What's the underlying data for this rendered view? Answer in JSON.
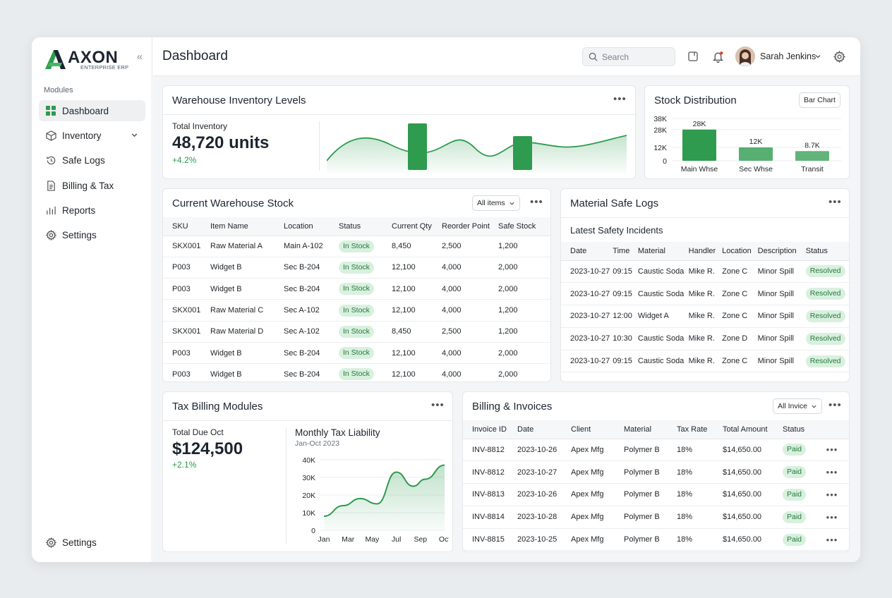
{
  "brand": {
    "name": "AXON",
    "subtitle": "ENTERPRISE ERP"
  },
  "sidebar": {
    "section_label": "Modules",
    "items": [
      {
        "label": "Dashboard",
        "icon": "grid-icon",
        "active": true
      },
      {
        "label": "Inventory",
        "icon": "box-icon"
      },
      {
        "label": "Safe Logs",
        "icon": "history-icon"
      },
      {
        "label": "Billing & Tax",
        "icon": "document-icon"
      },
      {
        "label": "Reports",
        "icon": "bar-chart-icon"
      },
      {
        "label": "Settings",
        "icon": "gear-icon"
      }
    ],
    "footer_label": "Settings"
  },
  "header": {
    "title": "Dashboard",
    "search_placeholder": "Search",
    "user_name": "Sarah Jenkins"
  },
  "warehouse": {
    "title": "Warehouse Inventory Levels",
    "total_label": "Total Inventory",
    "total_value": "48,720 units",
    "delta": "+4.2%"
  },
  "stock_dist": {
    "title": "Stock Distribution",
    "button": "Bar Chart",
    "chart_data": {
      "type": "bar",
      "categories": [
        "Main Whse",
        "Sec Whse",
        "Transit"
      ],
      "values": [
        28,
        12,
        8.7
      ],
      "data_labels": [
        "28K",
        "12K",
        "8.7K"
      ],
      "yticks": [
        "38K",
        "28K",
        "12K",
        "0"
      ],
      "color": "#2e9b4f"
    }
  },
  "stock_table": {
    "title": "Current Warehouse Stock",
    "filter": "All items",
    "columns": [
      "SKU",
      "Item Name",
      "Location",
      "Status",
      "Current Qty",
      "Reorder Point",
      "Safe Stock"
    ],
    "rows": [
      [
        "SKX001",
        "Raw Material A",
        "Main A-102",
        "In Stock",
        "8,450",
        "2,500",
        "1,200"
      ],
      [
        "P003",
        "Widget B",
        "Sec B-204",
        "In Stock",
        "12,100",
        "4,000",
        "2,000"
      ],
      [
        "P003",
        "Widget B",
        "Sec B-204",
        "In Stock",
        "12,100",
        "4,000",
        "2,000"
      ],
      [
        "SKX001",
        "Raw Material C",
        "Sec A-102",
        "In Stock",
        "12,100",
        "4,000",
        "1,200"
      ],
      [
        "SKX001",
        "Raw Material D",
        "Sec A-102",
        "In Stock",
        "8,450",
        "2,500",
        "1,200"
      ],
      [
        "P003",
        "Widget B",
        "Sec B-204",
        "In Stock",
        "12,100",
        "4,000",
        "2,000"
      ],
      [
        "P003",
        "Widget B",
        "Sec B-204",
        "In Stock",
        "12,100",
        "4,000",
        "2,000"
      ]
    ]
  },
  "safe_logs": {
    "title": "Material Safe Logs",
    "subtitle": "Latest Safety Incidents",
    "columns": [
      "Date",
      "Time",
      "Material",
      "Handler",
      "Location",
      "Description",
      "Status"
    ],
    "rows": [
      [
        "2023-10-27",
        "09:15",
        "Caustic Soda",
        "Mike R.",
        "Zone C",
        "Minor Spill",
        "Resolved"
      ],
      [
        "2023-10-27",
        "09:15",
        "Caustic Soda",
        "Mike R.",
        "Zone C",
        "Minor Spill",
        "Resolved"
      ],
      [
        "2023-10-27",
        "12:00",
        "Widget A",
        "Mike R.",
        "Zone C",
        "Minor Spill",
        "Resolved"
      ],
      [
        "2023-10-27",
        "10:30",
        "Caustic Soda",
        "Mike R.",
        "Zone D",
        "Minor Spill",
        "Resolved"
      ],
      [
        "2023-10-27",
        "09:15",
        "Caustic Soda",
        "Mike R.",
        "Zone C",
        "Minor Spill",
        "Resolved"
      ]
    ]
  },
  "tax": {
    "title": "Tax Billing Modules",
    "due_label": "Total Due Oct",
    "due_value": "$124,500",
    "delta": "+2.1%",
    "chart_title": "Monthly Tax Liability",
    "chart_subtitle": "Jan-Oct 2023",
    "chart_data": {
      "type": "area",
      "x": [
        "Jan",
        "Mar",
        "May",
        "Jul",
        "Sep",
        "Oct"
      ],
      "yticks": [
        "40K",
        "30K",
        "20K",
        "10K",
        "0"
      ],
      "ylim": [
        0,
        40
      ],
      "points": [
        [
          0,
          8
        ],
        [
          0.8,
          14
        ],
        [
          1.5,
          18
        ],
        [
          2.2,
          15
        ],
        [
          3.0,
          33
        ],
        [
          3.7,
          25
        ],
        [
          4.2,
          29
        ],
        [
          5,
          37
        ]
      ],
      "color": "#2e9b4f"
    }
  },
  "billing": {
    "title": "Billing & Invoices",
    "filter": "All Invice",
    "columns": [
      "Invoice ID",
      "Date",
      "Client",
      "Material",
      "Tax Rate",
      "Total Amount",
      "Status"
    ],
    "rows": [
      [
        "INV-8812",
        "2023-10-26",
        "Apex Mfg",
        "Polymer B",
        "18%",
        "$14,650.00",
        "Paid"
      ],
      [
        "INV-8812",
        "2023-10-27",
        "Apex Mfg",
        "Polymer B",
        "18%",
        "$14,650.00",
        "Paid"
      ],
      [
        "INV-8813",
        "2023-10-26",
        "Apex Mfg",
        "Polymer B",
        "18%",
        "$14,650.00",
        "Paid"
      ],
      [
        "INV-8814",
        "2023-10-28",
        "Apex Mfg",
        "Polymer B",
        "18%",
        "$14,650.00",
        "Paid"
      ],
      [
        "INV-8815",
        "2023-10-25",
        "Apex Mfg",
        "Polymer B",
        "18%",
        "$14,650.00",
        "Paid"
      ]
    ]
  }
}
